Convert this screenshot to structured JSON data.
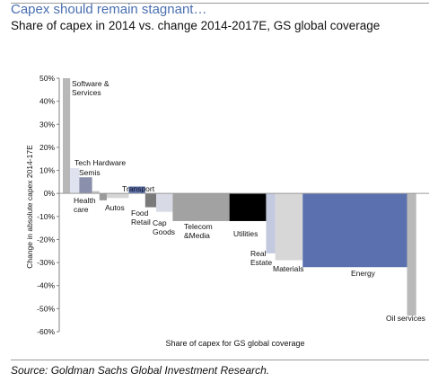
{
  "header": {
    "title": "Capex should remain stagnant…",
    "subtitle": "Share of capex in 2014 vs. change 2014-2017E, GS global coverage"
  },
  "footer": {
    "source": "Source: Goldman Sachs Global Investment Research."
  },
  "chart_data": {
    "type": "bar",
    "variable_width": true,
    "title": "Capex should remain stagnant…",
    "subtitle": "Share of capex in 2014 vs. change 2014-2017E, GS global coverage",
    "xlabel": "Share of capex for GS global coverage",
    "ylabel": "Change in absolute capex 2014-17E",
    "ylim": [
      -60,
      50
    ],
    "yticks": [
      "50%",
      "40%",
      "30%",
      "20%",
      "10%",
      "0%",
      "-10%",
      "-20%",
      "-30%",
      "-40%",
      "-50%",
      "-60%"
    ],
    "xlim": [
      0,
      100
    ],
    "x_unit": "% of total capex",
    "y_unit": "%",
    "grid": false,
    "legend": "none",
    "series": [
      {
        "label": "Software & Services",
        "share": 2.0,
        "value": 50,
        "color": "#b8b8b8"
      },
      {
        "label": "Tech Hardware",
        "share": 2.5,
        "value": 11,
        "color": "#dfe3ef"
      },
      {
        "label": "Semis",
        "share": 3.5,
        "value": 7,
        "color": "#8a90ab"
      },
      {
        "label": "Health care",
        "share": 2.0,
        "value": 1,
        "color": "#c4c4c4"
      },
      {
        "label": "",
        "share": 2.0,
        "value": -3,
        "color": "#9a9a9a"
      },
      {
        "label": "Autos",
        "share": 6.0,
        "value": -2,
        "color": "#d4d4d4"
      },
      {
        "label": "Transport",
        "share": 4.5,
        "value": 3,
        "color": "#5b6fae"
      },
      {
        "label": "Food Retail",
        "share": 3.0,
        "value": -6,
        "color": "#7a7a7a"
      },
      {
        "label": "Cap Goods",
        "share": 4.5,
        "value": -8,
        "color": "#d8dbe6"
      },
      {
        "label": "Telecom &Media",
        "share": 15.5,
        "value": -12,
        "color": "#a2a2a2"
      },
      {
        "label": "Utilities",
        "share": 10.0,
        "value": -12,
        "color": "#000000"
      },
      {
        "label": "Real Estate",
        "share": 2.5,
        "value": -26,
        "color": "#c3c9df"
      },
      {
        "label": "Materials",
        "share": 7.5,
        "value": -29,
        "color": "#d7d7d7"
      },
      {
        "label": "Energy",
        "share": 28.5,
        "value": -32,
        "color": "#5b70ae"
      },
      {
        "label": "Oil services",
        "share": 2.5,
        "value": -53,
        "color": "#b9b9b9"
      }
    ]
  }
}
